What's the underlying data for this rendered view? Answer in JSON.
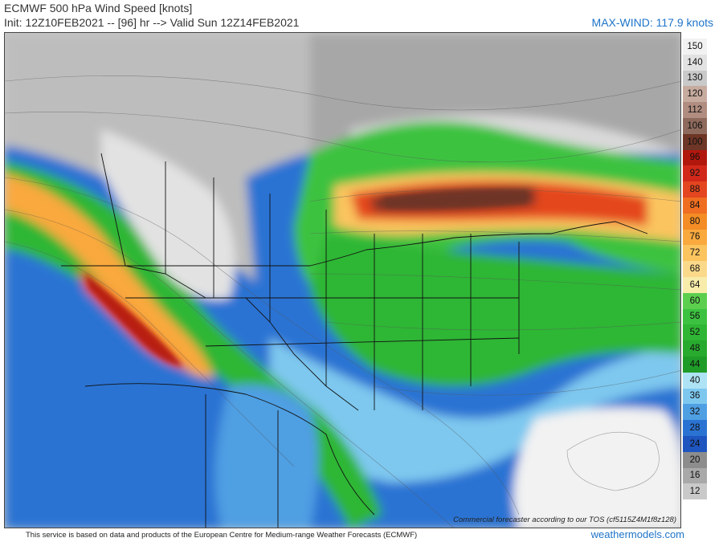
{
  "header": {
    "title": "ECMWF 500 hPa Wind Speed [knots]",
    "init_line": "Init: 12Z10FEB2021 -- [96] hr --> Valid Sun 12Z14FEB2021",
    "max_wind": "MAX-WIND: 117.9 knots"
  },
  "legend": [
    {
      "label": "150",
      "color": "#f2f2f2"
    },
    {
      "label": "140",
      "color": "#e2e2e2"
    },
    {
      "label": "130",
      "color": "#c9c9c9"
    },
    {
      "label": "120",
      "color": "#c7ab9f"
    },
    {
      "label": "112",
      "color": "#b08d80"
    },
    {
      "label": "106",
      "color": "#8d6a5c"
    },
    {
      "label": "100",
      "color": "#6e3626"
    },
    {
      "label": "96",
      "color": "#b1170d"
    },
    {
      "label": "92",
      "color": "#d2281a"
    },
    {
      "label": "88",
      "color": "#e4461f"
    },
    {
      "label": "84",
      "color": "#ef6e21"
    },
    {
      "label": "80",
      "color": "#f48d25"
    },
    {
      "label": "76",
      "color": "#f9a93e"
    },
    {
      "label": "72",
      "color": "#fbc45f"
    },
    {
      "label": "68",
      "color": "#fbd98a"
    },
    {
      "label": "64",
      "color": "#f7ecaa"
    },
    {
      "label": "60",
      "color": "#5ccf4e"
    },
    {
      "label": "56",
      "color": "#3cc240"
    },
    {
      "label": "52",
      "color": "#2fb634"
    },
    {
      "label": "48",
      "color": "#28aa2e"
    },
    {
      "label": "44",
      "color": "#1f9c28"
    },
    {
      "label": "40",
      "color": "#aee3f5"
    },
    {
      "label": "36",
      "color": "#7ec8ef"
    },
    {
      "label": "32",
      "color": "#4f9fe3"
    },
    {
      "label": "28",
      "color": "#2b73d3"
    },
    {
      "label": "24",
      "color": "#1e55bf"
    },
    {
      "label": "20",
      "color": "#8d8d8d"
    },
    {
      "label": "16",
      "color": "#a9a9a9"
    },
    {
      "label": "12",
      "color": "#c9c9c9"
    }
  ],
  "tos_note": "Commercial forecaster according to our TOS (cf5115Z4M1f8z128)",
  "footer": "This service is based on data and products of the European Centre for Medium-range Weather Forecasts (ECMWF)",
  "brand": "weathermodels.com"
}
